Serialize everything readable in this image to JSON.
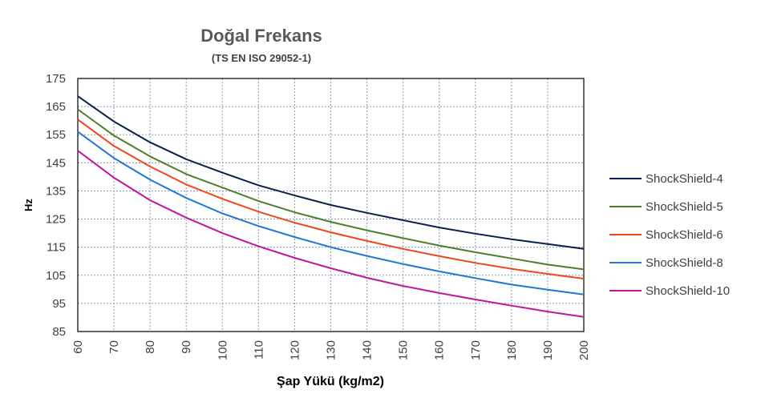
{
  "chart_data": {
    "type": "line",
    "title": "Doğal Frekans",
    "subtitle": "(TS EN ISO 29052-1)",
    "xlabel": "Şap Yükü (kg/m2)",
    "ylabel": "Hz",
    "xlim": [
      60,
      200
    ],
    "ylim": [
      85,
      175
    ],
    "x_ticks": [
      60,
      70,
      80,
      90,
      100,
      110,
      120,
      130,
      140,
      150,
      160,
      170,
      180,
      190,
      200
    ],
    "y_ticks": [
      85,
      95,
      105,
      115,
      125,
      135,
      145,
      155,
      165,
      175
    ],
    "grid": true,
    "legend_position": "right",
    "x": [
      60,
      70,
      80,
      90,
      100,
      110,
      120,
      130,
      140,
      150,
      160,
      170,
      180,
      190,
      200
    ],
    "series": [
      {
        "name": "ShockShield-4",
        "color": "#0b1f4f",
        "values": [
          168.7,
          159.7,
          152.3,
          146.3,
          141.5,
          137.0,
          133.4,
          130.0,
          127.2,
          124.6,
          122.0,
          119.8,
          117.8,
          116.1,
          114.4
        ]
      },
      {
        "name": "ShockShield-5",
        "color": "#4b7f2a",
        "values": [
          164.0,
          154.7,
          147.3,
          141.0,
          136.2,
          131.4,
          127.4,
          124.0,
          121.0,
          118.2,
          115.6,
          113.2,
          111.0,
          108.8,
          107.1
        ]
      },
      {
        "name": "ShockShield-6",
        "color": "#f0461a",
        "values": [
          160.4,
          151.0,
          143.7,
          137.3,
          132.2,
          127.6,
          123.7,
          120.3,
          117.2,
          114.4,
          111.8,
          109.4,
          107.3,
          105.5,
          103.8
        ]
      },
      {
        "name": "ShockShield-8",
        "color": "#1f77d4",
        "values": [
          156.1,
          146.7,
          139.0,
          132.5,
          127.0,
          122.5,
          118.6,
          115.0,
          111.9,
          109.0,
          106.4,
          104.0,
          101.7,
          99.9,
          98.2
        ]
      },
      {
        "name": "ShockShield-10",
        "color": "#c0169a",
        "values": [
          149.3,
          139.7,
          131.7,
          125.5,
          120.0,
          115.3,
          111.2,
          107.5,
          104.1,
          101.2,
          98.7,
          96.4,
          94.2,
          92.1,
          90.2
        ]
      }
    ]
  }
}
